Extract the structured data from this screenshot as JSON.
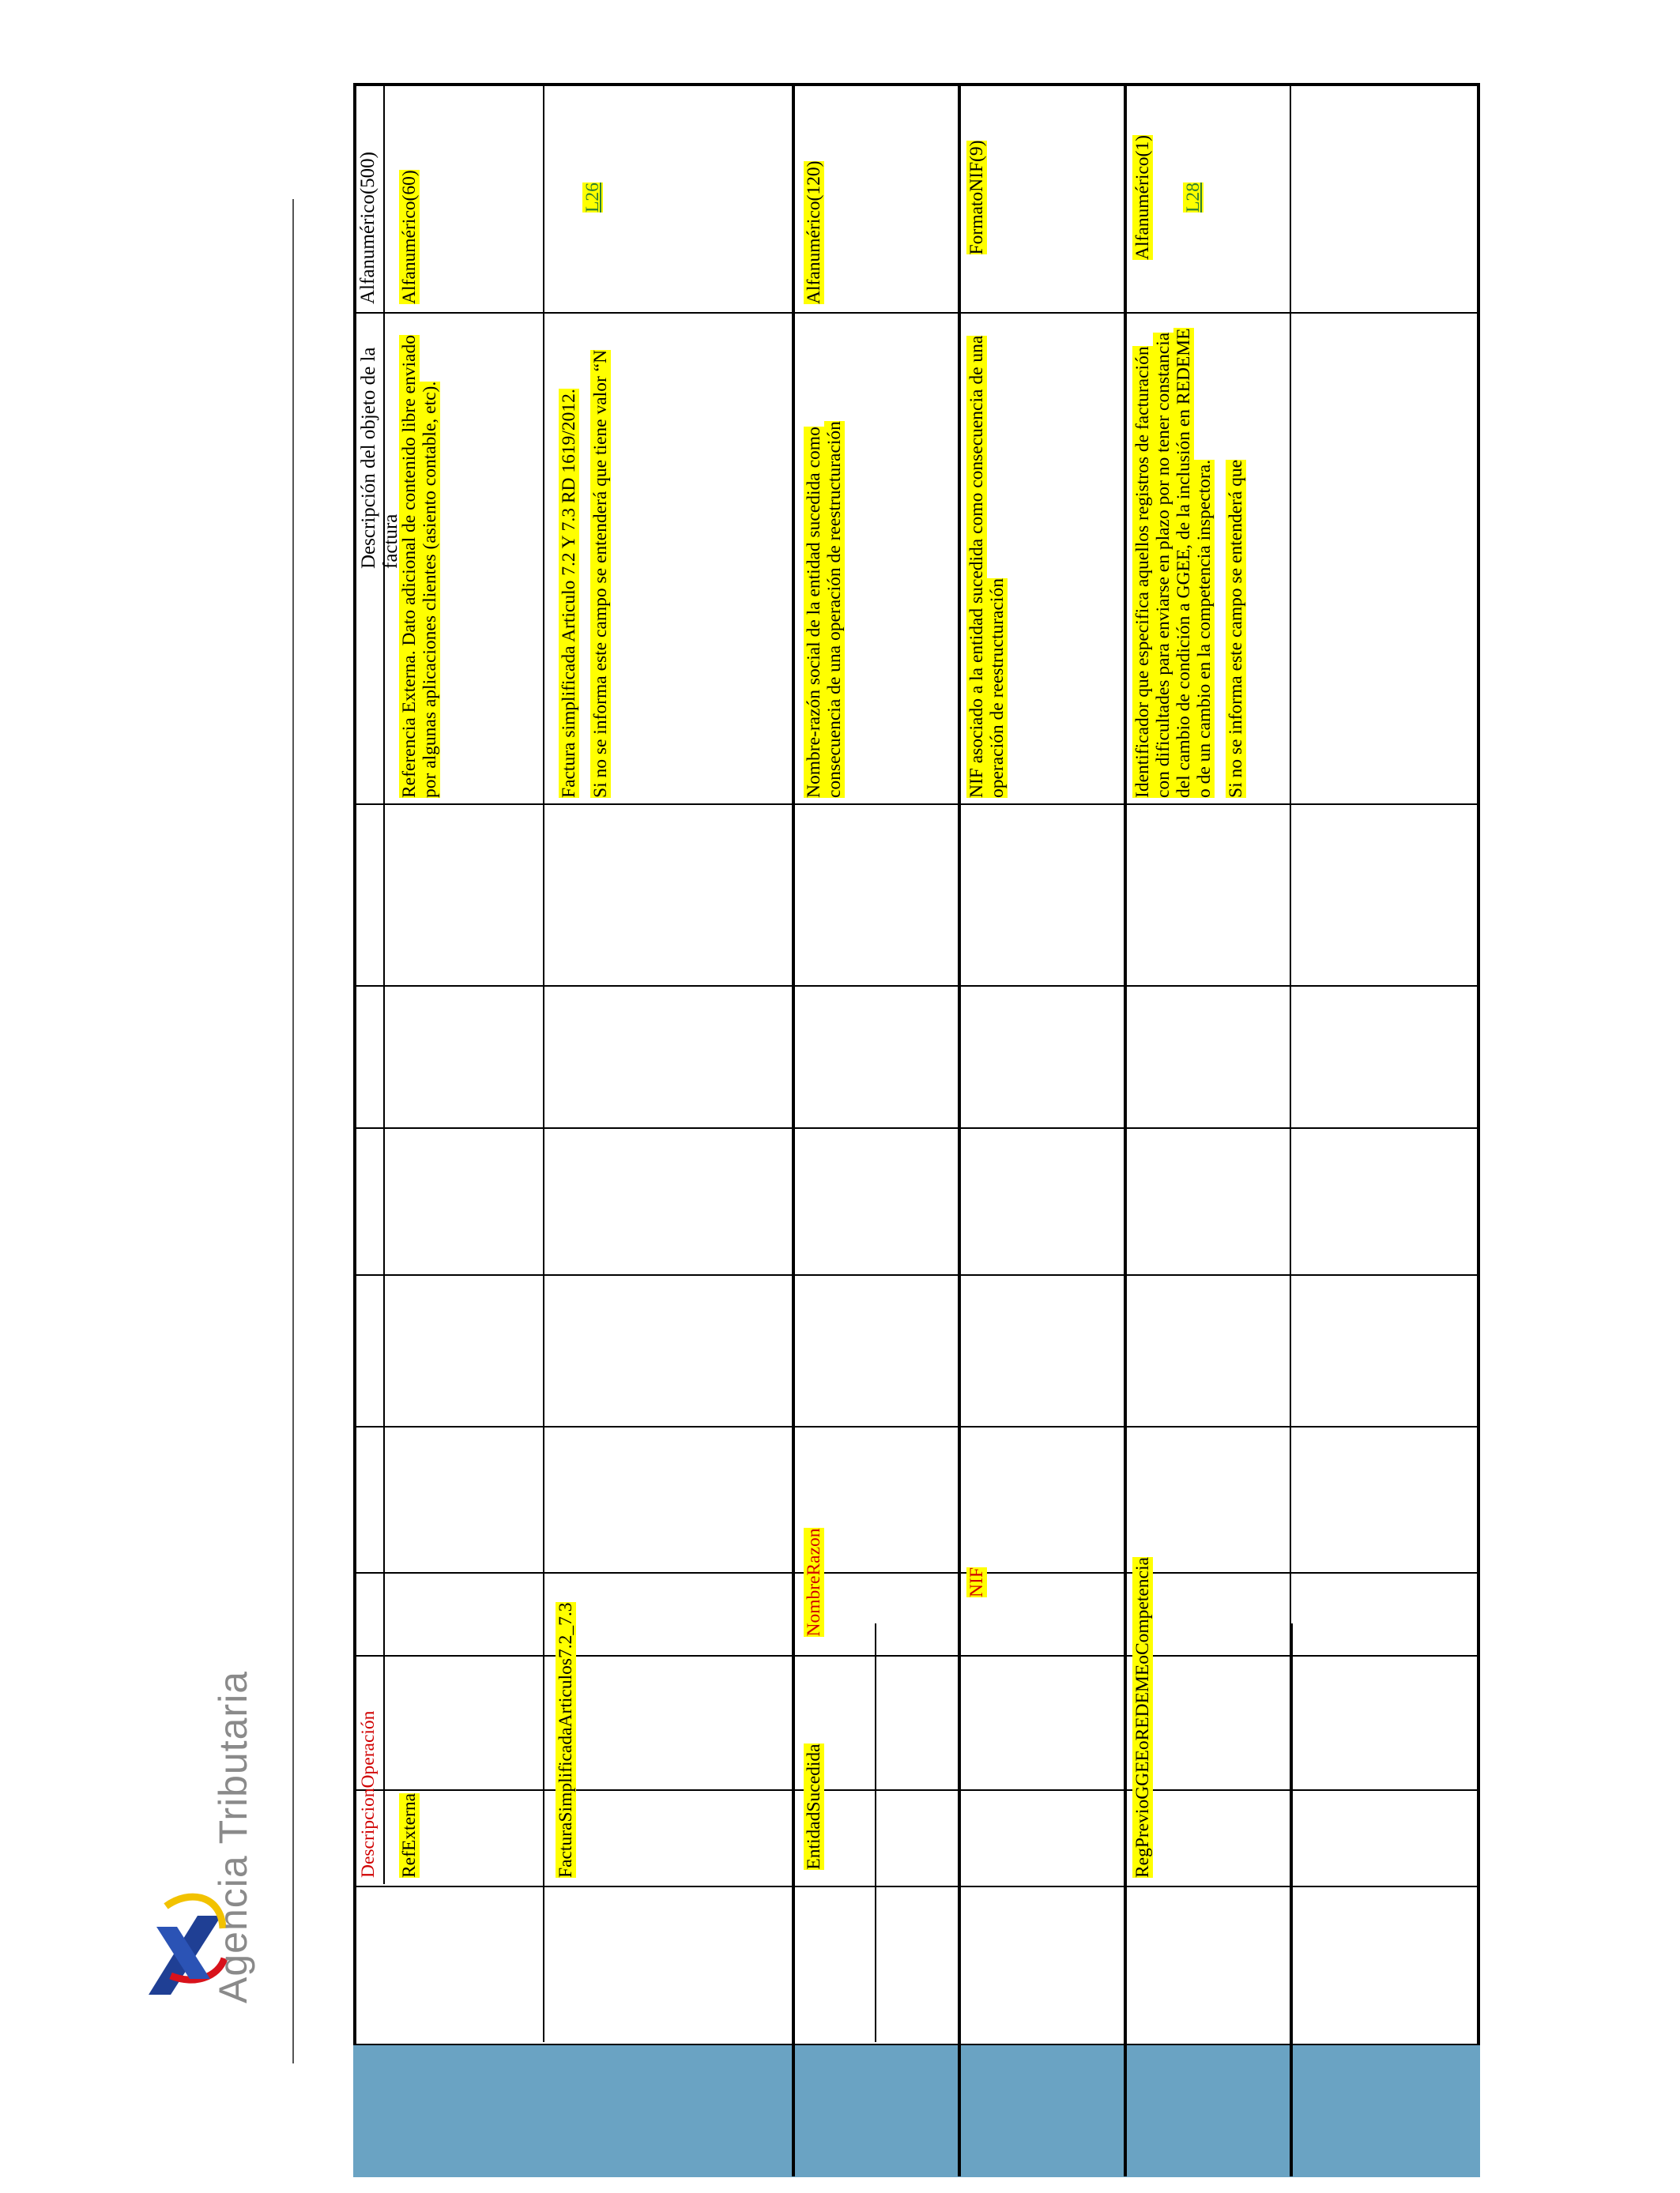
{
  "brand": {
    "name": "Agencia Tributaria"
  },
  "columns": {
    "field_header": "DescripcionOperación",
    "description_header": "Descripción del objeto de la factura",
    "format_header": "Alfanumérico(500)"
  },
  "rows": [
    {
      "field": "RefExterna",
      "subfield": "",
      "description": [
        "Referencia Externa. Dato adicional de contenido libre enviado por algunas aplicaciones clientes (asiento contable, etc)."
      ],
      "format": "Alfanumérico(60)",
      "link": ""
    },
    {
      "field": "FacturaSimplificadaArticulos7.2_7.3",
      "subfield": "",
      "description": [
        "Factura simplificada Articulo 7.2 Y 7.3 RD 1619/2012.",
        "Si no se informa este campo se entenderá que tiene valor “N"
      ],
      "format": "",
      "link": "L26"
    },
    {
      "field": "EntidadSucedida",
      "subfield": "NombreRazon",
      "description": [
        "Nombre-razón social de la entidad sucedida como consecuencia de una operación de reestructuración"
      ],
      "format": "Alfanumérico(120)",
      "link": ""
    },
    {
      "field": "",
      "subfield": "NIF",
      "description": [
        "NIF asociado a la entidad sucedida como consecuencia de una operación de reestructuración"
      ],
      "format": "FormatoNIF(9)",
      "link": ""
    },
    {
      "field": "RegPrevioGGEEoREDEMEoCompetencia",
      "subfield": "",
      "description": [
        "Identificador que especifica aquellos registros de facturación con dificultades para enviarse en plazo por no tener constancia del cambio de condición a GGEE, de la inclusión en REDEME o de un cambio en la competencia inspectora.",
        "Si no se informa este campo se entenderá que"
      ],
      "format": "Alfanumérico(1)",
      "link": "L28"
    }
  ]
}
